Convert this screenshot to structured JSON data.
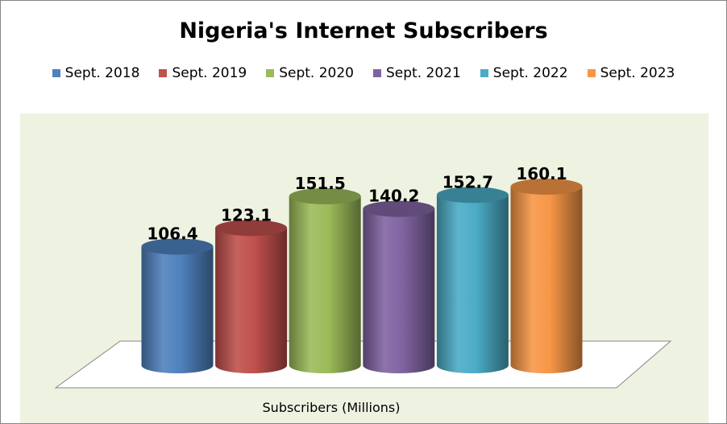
{
  "chart_data": {
    "type": "bar",
    "style": "3d-cylinder",
    "title": "Nigeria's Internet Subscribers",
    "xlabel": "Subscribers (Millions)",
    "ylabel": "",
    "legend_position": "top",
    "grid": false,
    "plot_area_color": "#EEF2E1",
    "series": [
      {
        "name": "Sept. 2018",
        "value": 106.4,
        "label": "106.4",
        "color": "#4F81BD"
      },
      {
        "name": "Sept. 2019",
        "value": 123.1,
        "label": "123.1",
        "color": "#C0504D"
      },
      {
        "name": "Sept. 2020",
        "value": 151.5,
        "label": "151.5",
        "color": "#9BBB59"
      },
      {
        "name": "Sept. 2021",
        "value": 140.2,
        "label": "140.2",
        "color": "#8064A2"
      },
      {
        "name": "Sept. 2022",
        "value": 152.7,
        "label": "152.7",
        "color": "#4BACC6"
      },
      {
        "name": "Sept. 2023",
        "value": 160.1,
        "label": "160.1",
        "color": "#F79646"
      }
    ]
  }
}
